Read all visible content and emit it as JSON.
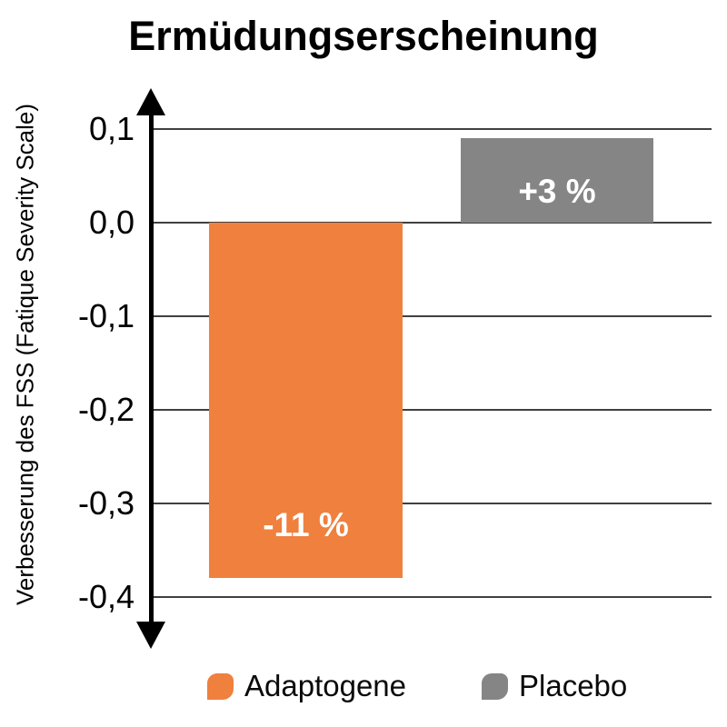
{
  "chart_data": {
    "type": "bar",
    "title": "Ermüdungserscheinung",
    "ylabel": "Verbesserung des FSS (Fatique Severity Scale)",
    "xlabel": "",
    "categories": [
      "Adaptogene",
      "Placebo"
    ],
    "values": [
      -0.38,
      0.09
    ],
    "bar_labels": [
      "-11 %",
      "+3 %"
    ],
    "bar_colors": [
      "#EF803E",
      "#858585"
    ],
    "yticks": [
      0.1,
      0.0,
      -0.1,
      -0.2,
      -0.3,
      -0.4
    ],
    "ytick_labels": [
      "0,1",
      "0,0",
      "-0,1",
      "-0,2",
      "-0,3",
      "-0,4"
    ],
    "ylim": [
      -0.45,
      0.14
    ],
    "grid": true,
    "legend_position": "bottom"
  },
  "legend": {
    "items": [
      {
        "label": "Adaptogene",
        "color": "#EF803E"
      },
      {
        "label": "Placebo",
        "color": "#858585"
      }
    ]
  }
}
